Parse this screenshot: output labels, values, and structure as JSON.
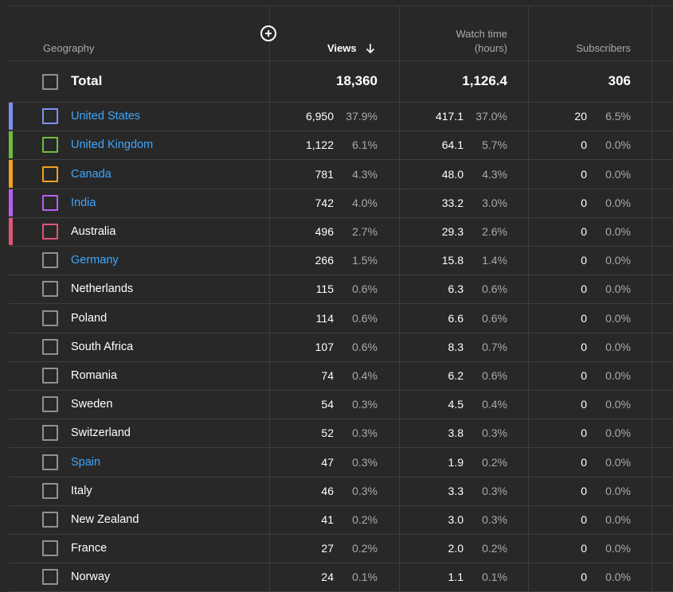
{
  "header": {
    "geography": "Geography",
    "views": "Views",
    "watch_time_line1": "Watch time",
    "watch_time_line2": "(hours)",
    "subscribers": "Subscribers"
  },
  "total": {
    "label": "Total",
    "views": "18,360",
    "watch_time": "1,126.4",
    "subscribers": "306"
  },
  "rows": [
    {
      "name": "United States",
      "link": true,
      "color": "#7d8ff2",
      "views": "6,950",
      "views_pct": "37.9%",
      "watch": "417.1",
      "watch_pct": "37.0%",
      "subs": "20",
      "subs_pct": "6.5%"
    },
    {
      "name": "United Kingdom",
      "link": true,
      "color": "#6fbb3e",
      "views": "1,122",
      "views_pct": "6.1%",
      "watch": "64.1",
      "watch_pct": "5.7%",
      "subs": "0",
      "subs_pct": "0.0%"
    },
    {
      "name": "Canada",
      "link": true,
      "color": "#f0a120",
      "views": "781",
      "views_pct": "4.3%",
      "watch": "48.0",
      "watch_pct": "4.3%",
      "subs": "0",
      "subs_pct": "0.0%"
    },
    {
      "name": "India",
      "link": true,
      "color": "#b55ff0",
      "views": "742",
      "views_pct": "4.0%",
      "watch": "33.2",
      "watch_pct": "3.0%",
      "subs": "0",
      "subs_pct": "0.0%"
    },
    {
      "name": "Australia",
      "link": false,
      "color": "#e05575",
      "views": "496",
      "views_pct": "2.7%",
      "watch": "29.3",
      "watch_pct": "2.6%",
      "subs": "0",
      "subs_pct": "0.0%"
    },
    {
      "name": "Germany",
      "link": true,
      "color": "",
      "views": "266",
      "views_pct": "1.5%",
      "watch": "15.8",
      "watch_pct": "1.4%",
      "subs": "0",
      "subs_pct": "0.0%"
    },
    {
      "name": "Netherlands",
      "link": false,
      "color": "",
      "views": "115",
      "views_pct": "0.6%",
      "watch": "6.3",
      "watch_pct": "0.6%",
      "subs": "0",
      "subs_pct": "0.0%"
    },
    {
      "name": "Poland",
      "link": false,
      "color": "",
      "views": "114",
      "views_pct": "0.6%",
      "watch": "6.6",
      "watch_pct": "0.6%",
      "subs": "0",
      "subs_pct": "0.0%"
    },
    {
      "name": "South Africa",
      "link": false,
      "color": "",
      "views": "107",
      "views_pct": "0.6%",
      "watch": "8.3",
      "watch_pct": "0.7%",
      "subs": "0",
      "subs_pct": "0.0%"
    },
    {
      "name": "Romania",
      "link": false,
      "color": "",
      "views": "74",
      "views_pct": "0.4%",
      "watch": "6.2",
      "watch_pct": "0.6%",
      "subs": "0",
      "subs_pct": "0.0%"
    },
    {
      "name": "Sweden",
      "link": false,
      "color": "",
      "views": "54",
      "views_pct": "0.3%",
      "watch": "4.5",
      "watch_pct": "0.4%",
      "subs": "0",
      "subs_pct": "0.0%"
    },
    {
      "name": "Switzerland",
      "link": false,
      "color": "",
      "views": "52",
      "views_pct": "0.3%",
      "watch": "3.8",
      "watch_pct": "0.3%",
      "subs": "0",
      "subs_pct": "0.0%"
    },
    {
      "name": "Spain",
      "link": true,
      "color": "",
      "views": "47",
      "views_pct": "0.3%",
      "watch": "1.9",
      "watch_pct": "0.2%",
      "subs": "0",
      "subs_pct": "0.0%"
    },
    {
      "name": "Italy",
      "link": false,
      "color": "",
      "views": "46",
      "views_pct": "0.3%",
      "watch": "3.3",
      "watch_pct": "0.3%",
      "subs": "0",
      "subs_pct": "0.0%"
    },
    {
      "name": "New Zealand",
      "link": false,
      "color": "",
      "views": "41",
      "views_pct": "0.2%",
      "watch": "3.0",
      "watch_pct": "0.3%",
      "subs": "0",
      "subs_pct": "0.0%"
    },
    {
      "name": "France",
      "link": false,
      "color": "",
      "views": "27",
      "views_pct": "0.2%",
      "watch": "2.0",
      "watch_pct": "0.2%",
      "subs": "0",
      "subs_pct": "0.0%"
    },
    {
      "name": "Norway",
      "link": false,
      "color": "",
      "views": "24",
      "views_pct": "0.1%",
      "watch": "1.1",
      "watch_pct": "0.1%",
      "subs": "0",
      "subs_pct": "0.0%"
    }
  ]
}
